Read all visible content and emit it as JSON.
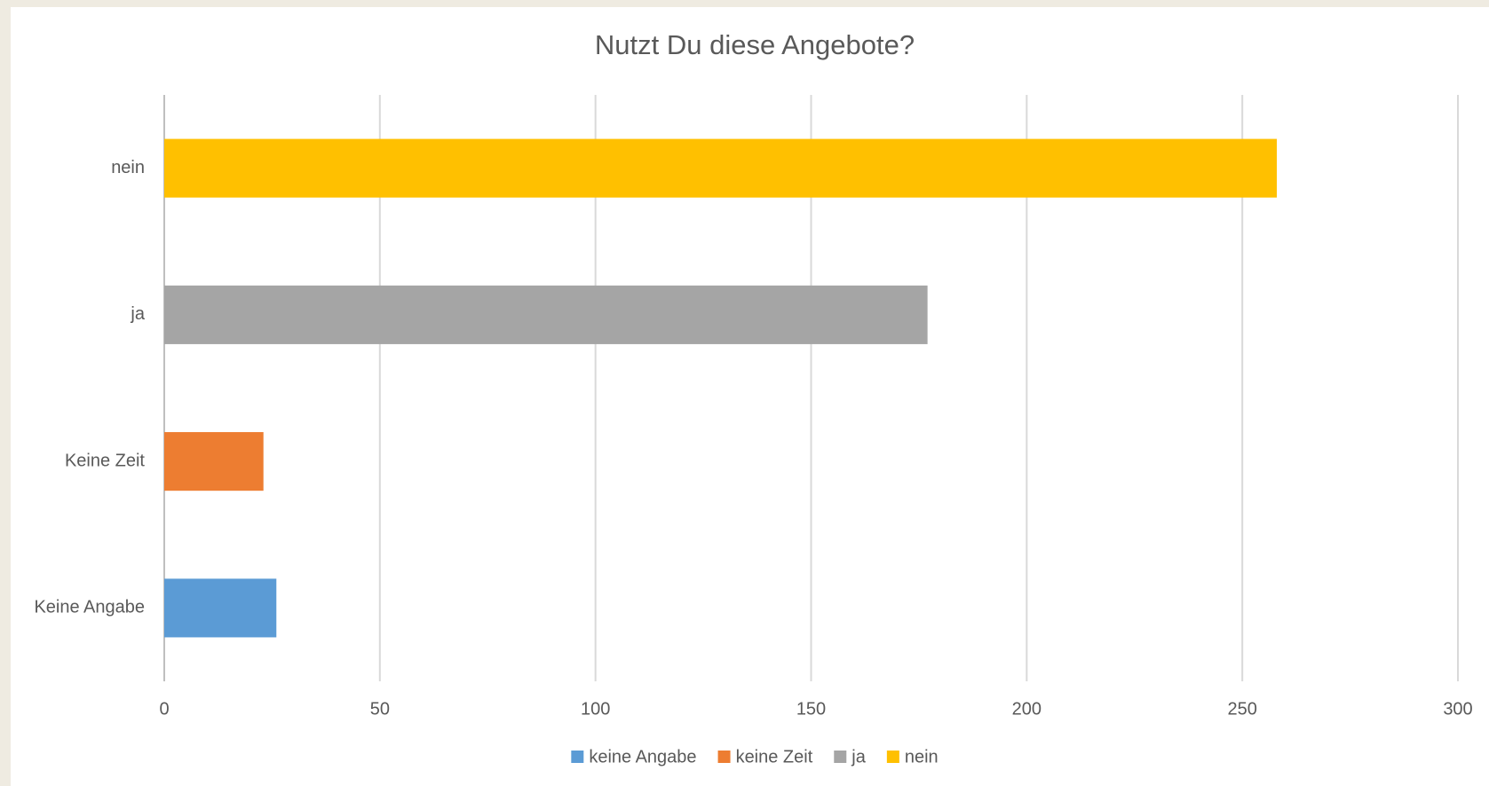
{
  "chart_data": {
    "type": "bar",
    "orientation": "horizontal",
    "stacked": true,
    "title": "Nutzt Du diese Angebote?",
    "categories": [
      "Keine Angabe",
      "Keine Zeit",
      "ja",
      "nein"
    ],
    "series": [
      {
        "name": "keine Angabe",
        "color": "#5b9bd5",
        "values": [
          26,
          null,
          null,
          null
        ]
      },
      {
        "name": "keine Zeit",
        "color": "#ed7d31",
        "values": [
          null,
          23,
          null,
          null
        ]
      },
      {
        "name": "ja",
        "color": "#a5a5a5",
        "values": [
          null,
          null,
          177,
          null
        ]
      },
      {
        "name": "nein",
        "color": "#ffc000",
        "values": [
          null,
          null,
          null,
          258
        ]
      }
    ],
    "xlim": [
      0,
      300
    ],
    "xticks": [
      0,
      50,
      100,
      150,
      200,
      250,
      300
    ],
    "grid": true,
    "legend": "bottom"
  }
}
